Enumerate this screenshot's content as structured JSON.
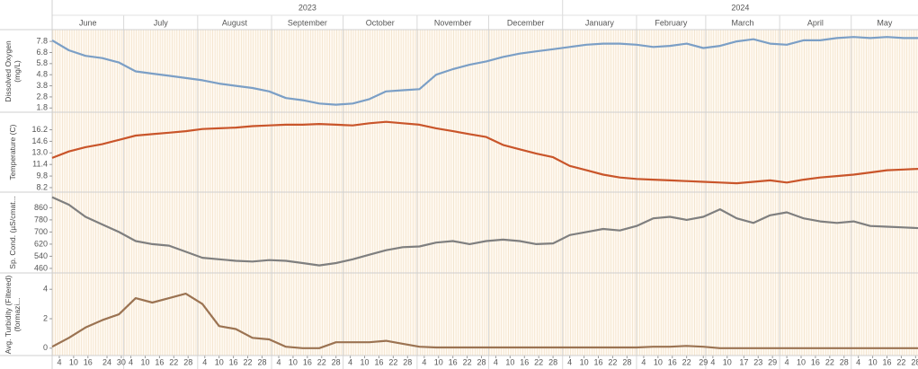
{
  "chart_data": {
    "type": "line",
    "xlim": [
      "2023-06-01",
      "2024-05-29"
    ],
    "years": [
      "2023",
      "2024"
    ],
    "months": [
      "June",
      "July",
      "August",
      "September",
      "October",
      "November",
      "December",
      "January",
      "February",
      "March",
      "April",
      "May"
    ],
    "x": [
      "2023-06-01",
      "2023-06-08",
      "2023-06-15",
      "2023-06-22",
      "2023-06-29",
      "2023-07-06",
      "2023-07-13",
      "2023-07-20",
      "2023-07-27",
      "2023-08-03",
      "2023-08-10",
      "2023-08-17",
      "2023-08-24",
      "2023-08-31",
      "2023-09-07",
      "2023-09-14",
      "2023-09-21",
      "2023-09-28",
      "2023-10-05",
      "2023-10-12",
      "2023-10-19",
      "2023-10-26",
      "2023-11-02",
      "2023-11-09",
      "2023-11-16",
      "2023-11-23",
      "2023-11-30",
      "2023-12-07",
      "2023-12-14",
      "2023-12-21",
      "2023-12-28",
      "2024-01-04",
      "2024-01-11",
      "2024-01-18",
      "2024-01-25",
      "2024-02-01",
      "2024-02-08",
      "2024-02-15",
      "2024-02-22",
      "2024-02-29",
      "2024-03-07",
      "2024-03-14",
      "2024-03-21",
      "2024-03-28",
      "2024-04-04",
      "2024-04-11",
      "2024-04-18",
      "2024-04-25",
      "2024-05-02",
      "2024-05-09",
      "2024-05-16",
      "2024-05-23",
      "2024-05-30"
    ],
    "xticks": [
      {
        "value": "2023-06-04",
        "label": "4"
      },
      {
        "value": "2023-06-10",
        "label": "10"
      },
      {
        "value": "2023-06-16",
        "label": "16"
      },
      {
        "value": "2023-06-24",
        "label": "24"
      },
      {
        "value": "2023-06-30",
        "label": "30"
      },
      {
        "value": "2023-07-04",
        "label": "4"
      },
      {
        "value": "2023-07-10",
        "label": "10"
      },
      {
        "value": "2023-07-16",
        "label": "16"
      },
      {
        "value": "2023-07-22",
        "label": "22"
      },
      {
        "value": "2023-07-28",
        "label": "28"
      },
      {
        "value": "2023-08-04",
        "label": "4"
      },
      {
        "value": "2023-08-10",
        "label": "10"
      },
      {
        "value": "2023-08-16",
        "label": "16"
      },
      {
        "value": "2023-08-22",
        "label": "22"
      },
      {
        "value": "2023-08-28",
        "label": "28"
      },
      {
        "value": "2023-09-04",
        "label": "4"
      },
      {
        "value": "2023-09-10",
        "label": "10"
      },
      {
        "value": "2023-09-16",
        "label": "16"
      },
      {
        "value": "2023-09-22",
        "label": "22"
      },
      {
        "value": "2023-09-28",
        "label": "28"
      },
      {
        "value": "2023-10-04",
        "label": "4"
      },
      {
        "value": "2023-10-10",
        "label": "10"
      },
      {
        "value": "2023-10-16",
        "label": "16"
      },
      {
        "value": "2023-10-22",
        "label": "22"
      },
      {
        "value": "2023-10-28",
        "label": "28"
      },
      {
        "value": "2023-11-04",
        "label": "4"
      },
      {
        "value": "2023-11-10",
        "label": "10"
      },
      {
        "value": "2023-11-16",
        "label": "16"
      },
      {
        "value": "2023-11-22",
        "label": "22"
      },
      {
        "value": "2023-11-28",
        "label": "28"
      },
      {
        "value": "2023-12-04",
        "label": "4"
      },
      {
        "value": "2023-12-10",
        "label": "10"
      },
      {
        "value": "2023-12-16",
        "label": "16"
      },
      {
        "value": "2023-12-22",
        "label": "22"
      },
      {
        "value": "2023-12-28",
        "label": "28"
      },
      {
        "value": "2024-01-04",
        "label": "4"
      },
      {
        "value": "2024-01-10",
        "label": "10"
      },
      {
        "value": "2024-01-16",
        "label": "16"
      },
      {
        "value": "2024-01-22",
        "label": "22"
      },
      {
        "value": "2024-01-28",
        "label": "28"
      },
      {
        "value": "2024-02-04",
        "label": "4"
      },
      {
        "value": "2024-02-10",
        "label": "10"
      },
      {
        "value": "2024-02-16",
        "label": "16"
      },
      {
        "value": "2024-02-22",
        "label": "22"
      },
      {
        "value": "2024-02-29",
        "label": "29"
      },
      {
        "value": "2024-03-04",
        "label": "4"
      },
      {
        "value": "2024-03-10",
        "label": "10"
      },
      {
        "value": "2024-03-17",
        "label": "17"
      },
      {
        "value": "2024-03-23",
        "label": "23"
      },
      {
        "value": "2024-03-29",
        "label": "29"
      },
      {
        "value": "2024-04-04",
        "label": "4"
      },
      {
        "value": "2024-04-10",
        "label": "10"
      },
      {
        "value": "2024-04-16",
        "label": "16"
      },
      {
        "value": "2024-04-22",
        "label": "22"
      },
      {
        "value": "2024-04-28",
        "label": "28"
      },
      {
        "value": "2024-05-04",
        "label": "4"
      },
      {
        "value": "2024-05-10",
        "label": "10"
      },
      {
        "value": "2024-05-16",
        "label": "16"
      },
      {
        "value": "2024-05-22",
        "label": "22"
      },
      {
        "value": "2024-05-28",
        "label": "28"
      }
    ],
    "panels": [
      {
        "ylabel": "Dissolved Oxygen (mg/L)",
        "color": "#7b9fc6",
        "ylim": [
          1.5,
          8.7
        ],
        "yticks": [
          1.8,
          2.8,
          3.8,
          4.8,
          5.8,
          6.8,
          7.8
        ],
        "values": [
          7.9,
          7.0,
          6.5,
          6.3,
          5.9,
          5.1,
          4.9,
          4.7,
          4.5,
          4.3,
          4.0,
          3.8,
          3.6,
          3.3,
          2.7,
          2.5,
          2.2,
          2.1,
          2.2,
          2.6,
          3.3,
          3.4,
          3.5,
          4.8,
          5.3,
          5.7,
          6.0,
          6.4,
          6.7,
          6.9,
          7.1,
          7.3,
          7.5,
          7.6,
          7.6,
          7.5,
          7.3,
          7.4,
          7.6,
          7.2,
          7.4,
          7.8,
          8.0,
          7.6,
          7.5,
          7.9,
          7.9,
          8.1,
          8.2,
          8.1,
          8.2,
          8.1,
          8.1
        ]
      },
      {
        "ylabel": "Temperature (C)",
        "color": "#c9552a",
        "ylim": [
          7.7,
          18.5
        ],
        "yticks": [
          8.2,
          9.8,
          11.4,
          {
            "value": 13,
            "label": "13.0"
          },
          14.6,
          16.2
        ],
        "values": [
          12.3,
          13.2,
          13.8,
          14.2,
          14.8,
          15.4,
          15.6,
          15.8,
          16.0,
          16.3,
          16.4,
          16.5,
          16.7,
          16.8,
          16.9,
          16.9,
          17.0,
          16.9,
          16.8,
          17.1,
          17.3,
          17.1,
          16.9,
          16.4,
          16.0,
          15.6,
          15.2,
          14.1,
          13.5,
          12.9,
          12.4,
          11.2,
          10.6,
          10.0,
          9.6,
          9.4,
          9.3,
          9.2,
          9.1,
          9.0,
          8.9,
          8.8,
          9.0,
          9.2,
          8.9,
          9.3,
          9.6,
          9.8,
          10.0,
          10.3,
          10.6,
          10.7,
          10.8
        ]
      },
      {
        "ylabel": "Sp. Cond. (µS/cmat...",
        "color": "#7f7f7f",
        "ylim": [
          436,
          957
        ],
        "yticks": [
          460,
          540,
          620,
          700,
          780,
          860
        ],
        "values": [
          930,
          880,
          800,
          750,
          700,
          640,
          620,
          610,
          570,
          530,
          520,
          510,
          505,
          515,
          510,
          495,
          480,
          495,
          520,
          550,
          580,
          600,
          605,
          630,
          640,
          620,
          640,
          650,
          640,
          620,
          625,
          680,
          700,
          720,
          710,
          740,
          790,
          800,
          780,
          800,
          850,
          790,
          760,
          810,
          830,
          790,
          770,
          760,
          770,
          740,
          735,
          730,
          725
        ]
      },
      {
        "ylabel": "Avg. Turbidity (Filtered) (formazi...",
        "color": "#9b7352",
        "ylim": [
          -0.5,
          5.05
        ],
        "yticks": [
          0,
          2,
          4
        ],
        "values": [
          0.1,
          0.7,
          1.4,
          1.9,
          2.3,
          3.4,
          3.1,
          3.4,
          3.7,
          3.0,
          1.5,
          1.3,
          0.7,
          0.6,
          0.1,
          0.0,
          0.0,
          0.4,
          0.4,
          0.4,
          0.5,
          0.3,
          0.1,
          0.05,
          0.05,
          0.05,
          0.05,
          0.05,
          0.05,
          0.05,
          0.05,
          0.05,
          0.05,
          0.05,
          0.05,
          0.05,
          0.1,
          0.1,
          0.15,
          0.1,
          0.0,
          0.0,
          0.0,
          0.0,
          0.0,
          0.0,
          0.0,
          0.0,
          0.0,
          0.0,
          0.0,
          0.0,
          0.0
        ]
      }
    ]
  }
}
